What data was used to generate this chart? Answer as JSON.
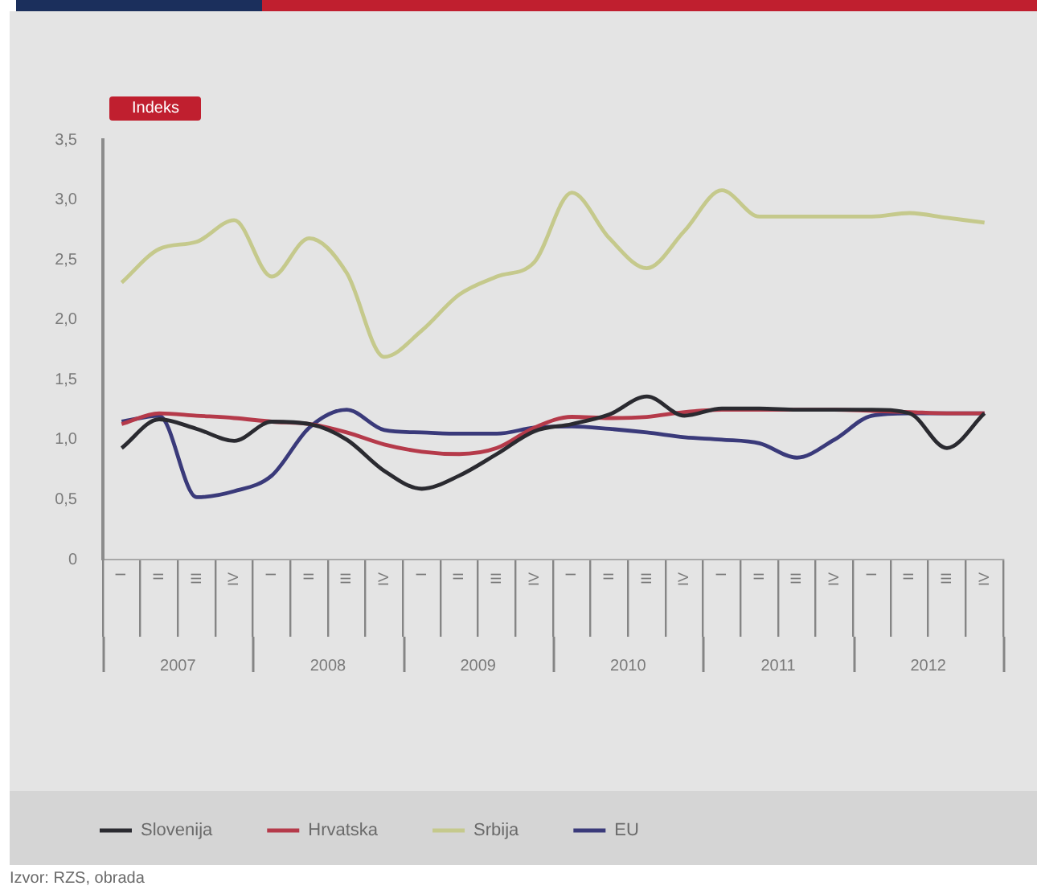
{
  "chart_data": {
    "type": "line",
    "ylabel": "Indeks",
    "annotations": [
      "Izvor: RZS, obrada"
    ],
    "categories": [
      "I",
      "II",
      "III",
      "IV",
      "I",
      "II",
      "III",
      "IV",
      "I",
      "II",
      "III",
      "IV",
      "I",
      "II",
      "III",
      "IV",
      "I",
      "II",
      "III",
      "IV",
      "I",
      "II",
      "III",
      "IV"
    ],
    "series": [
      {
        "name": "Slovenija",
        "color": "#2a2a30",
        "values": [
          0.93,
          1.17,
          1.09,
          0.99,
          1.15,
          1.13,
          1.0,
          0.74,
          0.59,
          0.7,
          0.88,
          1.07,
          1.13,
          1.21,
          1.36,
          1.2,
          1.26,
          1.26,
          1.25,
          1.25,
          1.25,
          1.22,
          0.93,
          1.22
        ]
      },
      {
        "name": "Hrvatska",
        "color": "#b53a4a",
        "values": [
          1.13,
          1.22,
          1.2,
          1.18,
          1.15,
          1.13,
          1.06,
          0.96,
          0.9,
          0.88,
          0.93,
          1.1,
          1.19,
          1.18,
          1.19,
          1.23,
          1.25,
          1.25,
          1.25,
          1.25,
          1.24,
          1.23,
          1.22,
          1.22
        ]
      },
      {
        "name": "Srbija",
        "color": "#c5c98c",
        "values": [
          2.31,
          2.59,
          2.65,
          2.83,
          2.36,
          2.68,
          2.39,
          1.69,
          1.91,
          2.21,
          2.36,
          2.48,
          3.06,
          2.68,
          2.43,
          2.74,
          3.08,
          2.86,
          2.86,
          2.86,
          2.86,
          2.89,
          2.85,
          2.81
        ]
      },
      {
        "name": "EU",
        "color": "#3a3a7a",
        "values": [
          1.15,
          1.2,
          0.52,
          0.57,
          0.7,
          1.1,
          1.25,
          1.08,
          1.06,
          1.05,
          1.05,
          1.1,
          1.11,
          1.09,
          1.06,
          1.02,
          1.0,
          0.97,
          0.85,
          1.0,
          1.2,
          1.22,
          1.22,
          1.22
        ]
      }
    ],
    "x2lim": [
      2006.5,
      2012.5
    ],
    "x2ticks": [
      2007,
      2008,
      2009,
      2010,
      2011,
      2012
    ],
    "ylim": [
      0,
      3.5
    ],
    "yticks": [
      0,
      {
        "value": 0.5,
        "label": "0,5"
      },
      {
        "value": 1,
        "label": "1,0"
      },
      {
        "value": 1.5,
        "label": "1,5"
      },
      {
        "value": 2,
        "label": "2,0"
      },
      {
        "value": 2.5,
        "label": "2,5"
      },
      {
        "value": 3,
        "label": "3,0"
      },
      {
        "value": 3.5,
        "label": "3,5"
      }
    ],
    "grid": false,
    "legend": "bottom left"
  }
}
